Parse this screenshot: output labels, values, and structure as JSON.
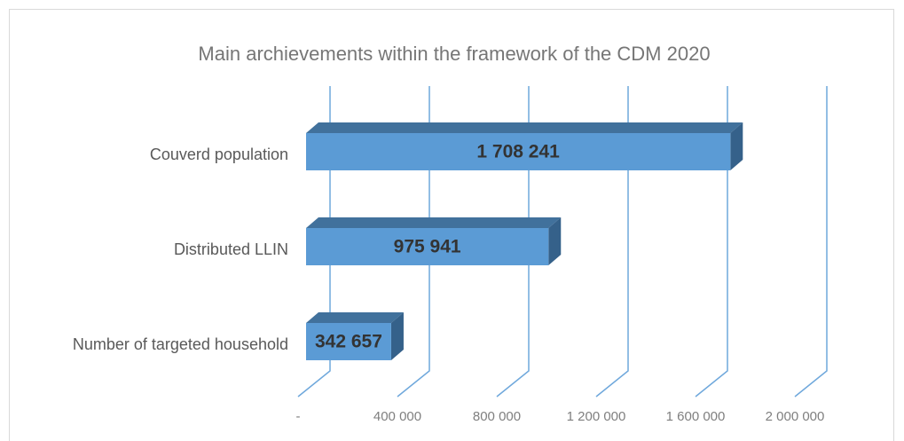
{
  "chart_data": {
    "type": "bar3d_horizontal",
    "title": "Main archievements within the framework of the CDM 2020",
    "categories": [
      "Couverd population",
      "Distributed LLIN",
      "Number of targeted household"
    ],
    "values": [
      1708241,
      975941,
      342657
    ],
    "value_labels": [
      "1 708 241",
      "975 941",
      "342 657"
    ],
    "color": "#5b9bd5",
    "xlim": [
      0,
      2000000
    ],
    "xticks": [
      {
        "value": 0,
        "label": "-"
      },
      {
        "value": 400000,
        "label": "400 000"
      },
      {
        "value": 800000,
        "label": "800 000"
      },
      {
        "value": 1200000,
        "label": "1 200 000"
      },
      {
        "value": 1600000,
        "label": "1 600 000"
      },
      {
        "value": 2000000,
        "label": "2 000 000"
      }
    ],
    "grid": true
  }
}
